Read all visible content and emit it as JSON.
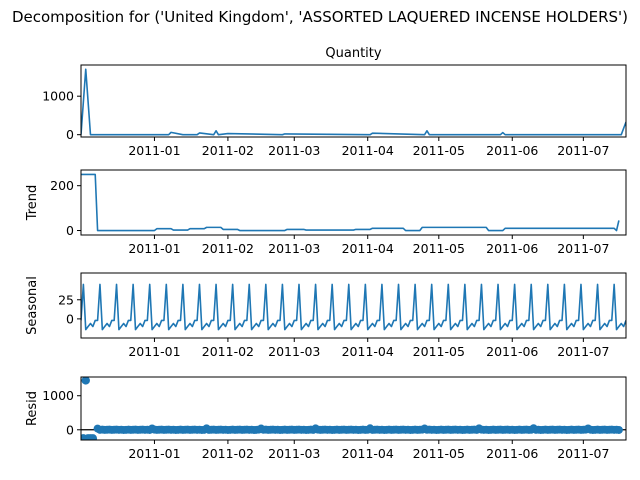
{
  "suptitle": "Decomposition for ('United Kingdom', 'ASSORTED LAQUERED INCENSE HOLDERS')",
  "line_color": "#1f77b4",
  "x_tick_labels": [
    "2011-01",
    "2011-02",
    "2011-03",
    "2011-04",
    "2011-05",
    "2011-06",
    "2011-07"
  ],
  "chart_data": [
    {
      "type": "line",
      "title": "Quantity",
      "ylabel": "",
      "xlim": [
        "2010-12-01",
        "2011-07-19"
      ],
      "ylim": [
        -60,
        1810
      ],
      "yticks": [
        0,
        1000
      ],
      "x": [
        "2010-12-01",
        "2010-12-03",
        "2010-12-05",
        "2010-12-07",
        "2010-12-15",
        "2010-12-21",
        "2011-01-07",
        "2011-01-08",
        "2011-01-13",
        "2011-01-19",
        "2011-01-20",
        "2011-01-26",
        "2011-01-27",
        "2011-01-28",
        "2011-02-01",
        "2011-02-24",
        "2011-02-25",
        "2011-04-02",
        "2011-04-03",
        "2011-04-25",
        "2011-04-26",
        "2011-04-27",
        "2011-05-27",
        "2011-05-28",
        "2011-05-29",
        "2011-07-17",
        "2011-07-19"
      ],
      "y": [
        0,
        1700,
        0,
        0,
        0,
        0,
        0,
        60,
        0,
        0,
        45,
        0,
        100,
        0,
        30,
        0,
        20,
        0,
        40,
        0,
        100,
        0,
        0,
        55,
        0,
        0,
        330
      ]
    },
    {
      "type": "line",
      "title": "",
      "ylabel": "Trend",
      "xlim": [
        "2010-12-01",
        "2011-07-19"
      ],
      "ylim": [
        -20,
        270
      ],
      "yticks": [
        0,
        200
      ],
      "x": [
        "2010-12-01",
        "2010-12-07",
        "2010-12-08",
        "2011-01-01",
        "2011-01-02",
        "2011-01-08",
        "2011-01-09",
        "2011-01-15",
        "2011-01-16",
        "2011-01-22",
        "2011-01-23",
        "2011-01-29",
        "2011-01-30",
        "2011-02-05",
        "2011-02-06",
        "2011-02-25",
        "2011-02-26",
        "2011-03-05",
        "2011-03-06",
        "2011-03-26",
        "2011-03-27",
        "2011-04-02",
        "2011-04-03",
        "2011-04-16",
        "2011-04-17",
        "2011-04-23",
        "2011-04-24",
        "2011-05-21",
        "2011-05-22",
        "2011-05-28",
        "2011-05-29",
        "2011-07-14",
        "2011-07-15",
        "2011-07-16"
      ],
      "y": [
        250,
        250,
        0,
        0,
        8,
        8,
        2,
        2,
        8,
        8,
        14,
        14,
        5,
        5,
        0,
        0,
        5,
        5,
        2,
        2,
        5,
        5,
        10,
        10,
        0,
        0,
        14,
        14,
        0,
        0,
        10,
        10,
        0,
        45
      ]
    },
    {
      "type": "line",
      "title": "",
      "ylabel": "Seasonal",
      "xlim": [
        "2010-12-01",
        "2011-07-19"
      ],
      "ylim": [
        -25,
        60
      ],
      "yticks": [
        0,
        25
      ],
      "period_days": 7,
      "weekly_pattern": [
        -2,
        45,
        -14,
        -10,
        -6,
        -10,
        -2
      ],
      "start": "2010-12-01",
      "end": "2011-07-19"
    },
    {
      "type": "scatter",
      "title": "",
      "ylabel": "Resid",
      "xlim": [
        "2010-12-01",
        "2011-07-19"
      ],
      "ylim": [
        -300,
        1550
      ],
      "yticks": [
        0,
        1000
      ],
      "baseline": 0,
      "outliers": [
        {
          "x": "2010-12-03",
          "y": 1450
        },
        {
          "x": "2010-12-02",
          "y": -250
        },
        {
          "x": "2010-12-04",
          "y": -250
        },
        {
          "x": "2010-12-05",
          "y": -250
        },
        {
          "x": "2010-12-06",
          "y": -250
        }
      ],
      "start": "2010-12-08",
      "end": "2011-07-16"
    }
  ]
}
